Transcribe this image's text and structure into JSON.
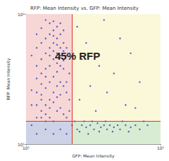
{
  "chart_data": {
    "type": "scatter",
    "title": "RFP: Mean Intensity vs. GFP: Mean Intensity",
    "x_label": "GFP: Mean Intensity",
    "y_label": "RFP: Mean Intensity",
    "annotation": "45% RFP",
    "log": true,
    "color": "#3a55c8",
    "xlim": [
      10,
      100
    ],
    "ylim": [
      10,
      100
    ],
    "xticks": [
      {
        "value": 10,
        "label": "10¹"
      },
      {
        "value": 100,
        "label": "10²"
      }
    ],
    "yticks": [
      {
        "value": 10,
        "label": "10¹"
      },
      {
        "value": 100,
        "label": "10²"
      }
    ],
    "gate": {
      "x": 22,
      "y": 15
    },
    "x": [
      11,
      12,
      13,
      14,
      15,
      16,
      17,
      18,
      12,
      13,
      14,
      15,
      16,
      17,
      18,
      19,
      14,
      15,
      16,
      17,
      18,
      13,
      14,
      15,
      16,
      17,
      18,
      19,
      20,
      12,
      13,
      14,
      15,
      16,
      17,
      18,
      19,
      20,
      21,
      11,
      12,
      13,
      14,
      15,
      16,
      17,
      18,
      19,
      14,
      15,
      16,
      13,
      12,
      11,
      12,
      13,
      20,
      21,
      20,
      19,
      18,
      17,
      16,
      15,
      14,
      13,
      19,
      20,
      21,
      16,
      17,
      15,
      14,
      13,
      12,
      11,
      18,
      19,
      17,
      16,
      22,
      24,
      26,
      28,
      30,
      32,
      34,
      36,
      38,
      40,
      42,
      45,
      48,
      50,
      55,
      60,
      65,
      70,
      80,
      23,
      25,
      27,
      29,
      31,
      35,
      39,
      44,
      52,
      58,
      75,
      25,
      30,
      35,
      40,
      28,
      45,
      55,
      60,
      24,
      33,
      70,
      50,
      26,
      38,
      65,
      12,
      14,
      16,
      18,
      20
    ],
    "values": [
      14,
      16,
      18,
      20,
      22,
      25,
      28,
      30,
      32,
      35,
      38,
      40,
      45,
      50,
      55,
      60,
      65,
      70,
      75,
      80,
      85,
      24,
      27,
      30,
      33,
      36,
      40,
      44,
      48,
      20,
      22,
      17,
      19,
      21,
      23,
      19,
      17,
      16,
      18,
      26,
      40,
      45,
      50,
      55,
      60,
      65,
      70,
      75,
      90,
      85,
      88,
      60,
      55,
      48,
      70,
      78,
      30,
      35,
      55,
      38,
      24,
      18,
      15,
      16,
      15,
      16,
      28,
      25,
      22,
      52,
      42,
      48,
      33,
      29,
      25,
      20,
      48,
      52,
      58,
      68,
      14,
      13,
      14,
      13.5,
      14,
      13,
      14.5,
      13.5,
      14,
      13,
      14,
      13.5,
      14,
      13,
      14,
      13.5,
      14,
      13,
      14,
      15,
      12.5,
      15,
      12,
      15,
      12.5,
      15,
      12.5,
      15,
      12.5,
      15,
      22,
      28,
      40,
      25,
      60,
      35,
      20,
      50,
      80,
      18,
      30,
      65,
      45,
      90,
      19,
      12,
      13,
      12,
      13,
      12
    ]
  }
}
